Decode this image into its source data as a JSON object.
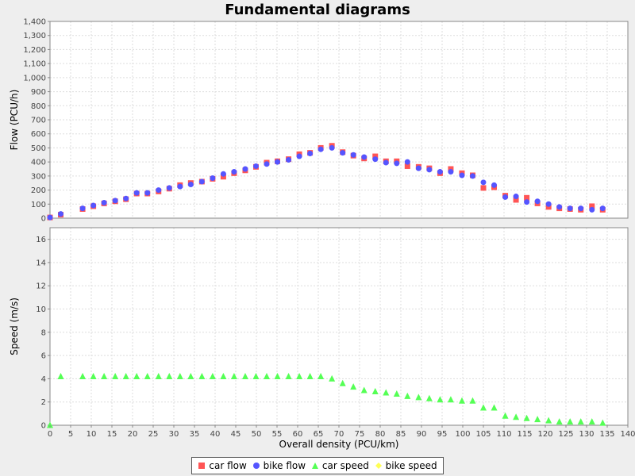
{
  "chart_data": {
    "type": "scatter",
    "title": "Fundamental diagrams",
    "xlabel": "Overall density (PCU/km)",
    "xlim": [
      0,
      140
    ],
    "x_ticks": [
      "0",
      "5",
      "10",
      "15",
      "20",
      "25",
      "30",
      "35",
      "40",
      "45",
      "50",
      "55",
      "60",
      "65",
      "70",
      "75",
      "80",
      "85",
      "90",
      "95",
      "100",
      "105",
      "110",
      "115",
      "120",
      "125",
      "130",
      "135",
      "140"
    ],
    "grid": true,
    "legend_position": "bottom",
    "panels": [
      {
        "ylabel": "Flow (PCU/h)",
        "ylim": [
          0,
          1400
        ],
        "y_ticks": [
          "0",
          "100",
          "200",
          "300",
          "400",
          "500",
          "600",
          "700",
          "800",
          "900",
          "1,000",
          "1,100",
          "1,200",
          "1,300",
          "1,400"
        ],
        "series": [
          {
            "name": "car flow",
            "marker": "square",
            "color": "#ff5555",
            "x": [
              0,
              2.6,
              7.9,
              10.5,
              13.1,
              15.8,
              18.4,
              21.0,
              23.6,
              26.3,
              28.9,
              31.5,
              34.1,
              36.8,
              39.4,
              42.0,
              44.6,
              47.3,
              49.9,
              52.5,
              55.1,
              57.8,
              60.4,
              63.0,
              65.6,
              68.3,
              70.9,
              73.5,
              76.1,
              78.8,
              81.4,
              84.0,
              86.6,
              89.3,
              91.9,
              94.5,
              97.1,
              99.8,
              102.4,
              105.0,
              107.6,
              110.3,
              112.9,
              115.5,
              118.1,
              120.8,
              123.4,
              126.0,
              128.6,
              131.3,
              133.9
            ],
            "y": [
              5,
              25,
              65,
              85,
              105,
              120,
              135,
              175,
              175,
              190,
              210,
              235,
              250,
              260,
              280,
              295,
              320,
              340,
              365,
              395,
              405,
              420,
              455,
              465,
              500,
              515,
              470,
              445,
              425,
              440,
              405,
              405,
              370,
              365,
              355,
              320,
              350,
              320,
              305,
              215,
              220,
              160,
              130,
              145,
              105,
              80,
              70,
              65,
              60,
              85,
              60
            ]
          },
          {
            "name": "bike flow",
            "marker": "circle",
            "color": "#5555ff",
            "x": [
              0,
              2.6,
              7.9,
              10.5,
              13.1,
              15.8,
              18.4,
              21.0,
              23.6,
              26.3,
              28.9,
              31.5,
              34.1,
              36.8,
              39.4,
              42.0,
              44.6,
              47.3,
              49.9,
              52.5,
              55.1,
              57.8,
              60.4,
              63.0,
              65.6,
              68.3,
              70.9,
              73.5,
              76.1,
              78.8,
              81.4,
              84.0,
              86.6,
              89.3,
              91.9,
              94.5,
              97.1,
              99.8,
              102.4,
              105.0,
              107.6,
              110.3,
              112.9,
              115.5,
              118.1,
              120.8,
              123.4,
              126.0,
              128.6,
              131.3,
              133.9
            ],
            "y": [
              5,
              30,
              70,
              90,
              110,
              125,
              140,
              180,
              180,
              200,
              215,
              225,
              240,
              260,
              285,
              315,
              330,
              350,
              370,
              385,
              400,
              415,
              440,
              460,
              490,
              500,
              465,
              450,
              435,
              420,
              395,
              390,
              400,
              355,
              345,
              330,
              330,
              305,
              300,
              255,
              235,
              150,
              155,
              115,
              120,
              100,
              80,
              70,
              70,
              60,
              70
            ]
          }
        ]
      },
      {
        "ylabel": "Speed (m/s)",
        "ylim": [
          0,
          17
        ],
        "y_ticks": [
          "0",
          "2",
          "4",
          "6",
          "8",
          "10",
          "12",
          "14",
          "16"
        ],
        "series": [
          {
            "name": "car speed",
            "marker": "triangle",
            "color": "#55ff55",
            "x": [
              0,
              2.6,
              7.9,
              10.5,
              13.1,
              15.8,
              18.4,
              21.0,
              23.6,
              26.3,
              28.9,
              31.5,
              34.1,
              36.8,
              39.4,
              42.0,
              44.6,
              47.3,
              49.9,
              52.5,
              55.1,
              57.8,
              60.4,
              63.0,
              65.6,
              68.3,
              70.9,
              73.5,
              76.1,
              78.8,
              81.4,
              84.0,
              86.6,
              89.3,
              91.9,
              94.5,
              97.1,
              99.8,
              102.4,
              105.0,
              107.6,
              110.3,
              112.9,
              115.5,
              118.1,
              120.8,
              123.4,
              126.0,
              128.6,
              131.3,
              133.9
            ],
            "y": [
              0,
              4.2,
              4.2,
              4.2,
              4.2,
              4.2,
              4.2,
              4.2,
              4.2,
              4.2,
              4.2,
              4.2,
              4.2,
              4.2,
              4.2,
              4.2,
              4.2,
              4.2,
              4.2,
              4.2,
              4.2,
              4.2,
              4.2,
              4.2,
              4.2,
              4.0,
              3.6,
              3.3,
              3.0,
              2.9,
              2.8,
              2.7,
              2.5,
              2.4,
              2.3,
              2.2,
              2.2,
              2.1,
              2.1,
              1.5,
              1.5,
              0.8,
              0.7,
              0.6,
              0.5,
              0.4,
              0.3,
              0.3,
              0.3,
              0.3,
              0.2
            ]
          },
          {
            "name": "bike speed",
            "marker": "diamond",
            "color": "#ffff55",
            "x": [],
            "y": []
          }
        ]
      }
    ],
    "legend": [
      {
        "label": "car flow",
        "marker": "square",
        "color": "#ff5555"
      },
      {
        "label": "bike flow",
        "marker": "circle",
        "color": "#5555ff"
      },
      {
        "label": "car speed",
        "marker": "triangle",
        "color": "#55ff55"
      },
      {
        "label": "bike speed",
        "marker": "diamond",
        "color": "#ffff55"
      }
    ]
  }
}
